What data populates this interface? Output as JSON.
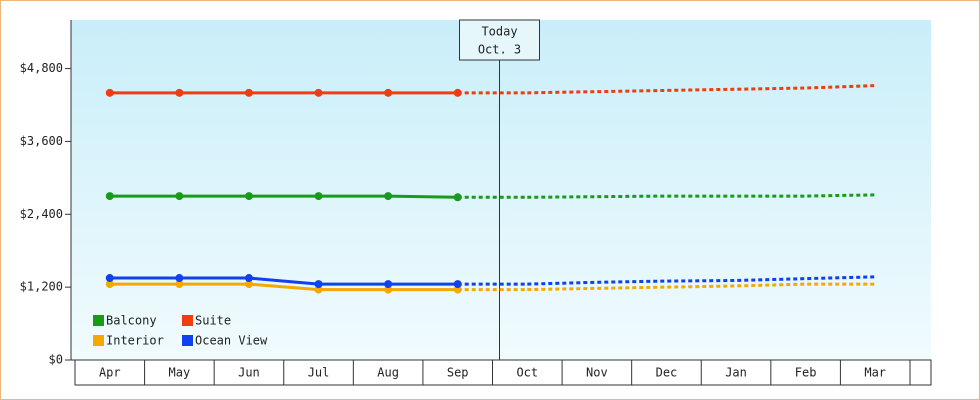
{
  "chart_data": {
    "type": "line",
    "categories": [
      "Apr",
      "May",
      "Jun",
      "Jul",
      "Aug",
      "Sep",
      "Oct",
      "Nov",
      "Dec",
      "Jan",
      "Feb",
      "Mar"
    ],
    "series": [
      {
        "name": "Balcony",
        "color": "#1a9a1a",
        "values": [
          2700,
          2700,
          2700,
          2700,
          2700,
          2680,
          2680,
          2690,
          2700,
          2700,
          2700,
          2720
        ]
      },
      {
        "name": "Suite",
        "color": "#f03c0f",
        "values": [
          4400,
          4400,
          4400,
          4400,
          4400,
          4400,
          4400,
          4420,
          4440,
          4460,
          4480,
          4520
        ]
      },
      {
        "name": "Interior",
        "color": "#f5a800",
        "values": [
          1250,
          1250,
          1250,
          1160,
          1160,
          1160,
          1160,
          1180,
          1200,
          1220,
          1250,
          1250
        ]
      },
      {
        "name": "Ocean View",
        "color": "#1040f0",
        "values": [
          1350,
          1350,
          1350,
          1250,
          1250,
          1250,
          1250,
          1280,
          1300,
          1310,
          1340,
          1370
        ]
      }
    ],
    "ylim": [
      0,
      5600
    ],
    "yticks": [
      {
        "value": 0,
        "label": "$0"
      },
      {
        "value": 1200,
        "label": "$1,200"
      },
      {
        "value": 2400,
        "label": "$2,400"
      },
      {
        "value": 3600,
        "label": "$3,600"
      },
      {
        "value": 4800,
        "label": "$4,800"
      }
    ],
    "annotation": {
      "line1": "Today",
      "line2": "Oct. 3"
    },
    "forecast_start": "Oct",
    "legend": "bottom-left"
  }
}
